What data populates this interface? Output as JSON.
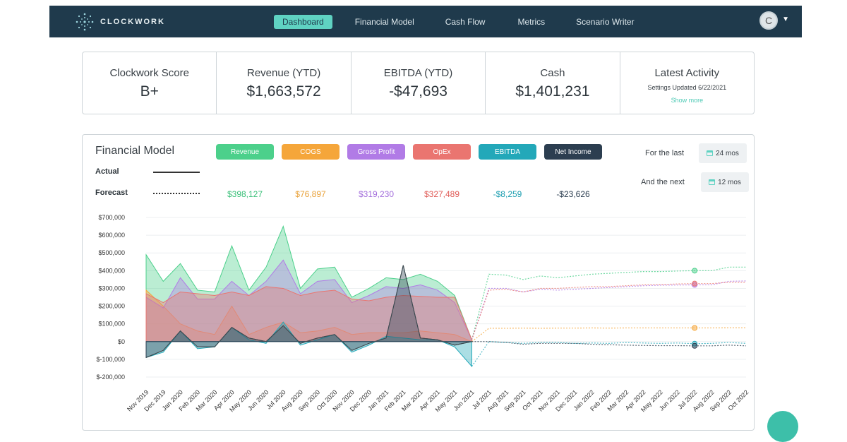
{
  "nav": {
    "logo_text": "CLOCKWORK",
    "links": [
      "Dashboard",
      "Financial Model",
      "Cash Flow",
      "Metrics",
      "Scenario Writer"
    ],
    "active": "Dashboard",
    "avatar_letter": "C"
  },
  "stats": [
    {
      "label": "Clockwork Score",
      "value": "B+"
    },
    {
      "label": "Revenue (YTD)",
      "value": "$1,663,572"
    },
    {
      "label": "EBITDA (YTD)",
      "value": "-$47,693"
    },
    {
      "label": "Cash",
      "value": "$1,401,231"
    },
    {
      "label": "Latest Activity",
      "sub": "Settings Updated 6/22/2021",
      "link": "Show more"
    }
  ],
  "model": {
    "title": "Financial Model",
    "actual_label": "Actual",
    "forecast_label": "Forecast",
    "for_last_label": "For the last",
    "for_last_value": "24 mos",
    "and_next_label": "And the next",
    "and_next_value": "12 mos",
    "metrics": [
      {
        "name": "Revenue",
        "value": "$398,127",
        "color": "#4cd08b",
        "text_color": "#3cc07a"
      },
      {
        "name": "COGS",
        "value": "$76,897",
        "color": "#f5a63a",
        "text_color": "#e9a23a"
      },
      {
        "name": "Gross Profit",
        "value": "$319,230",
        "color": "#b17be6",
        "text_color": "#a46fdc"
      },
      {
        "name": "OpEx",
        "value": "$327,489",
        "color": "#ea7570",
        "text_color": "#e05c57"
      },
      {
        "name": "EBITDA",
        "value": "-$8,259",
        "color": "#23a8b9",
        "text_color": "#1f9fb1"
      },
      {
        "name": "Net Income",
        "value": "-$23,626",
        "color": "#2c3e50",
        "text_color": "#2c3e50"
      }
    ]
  },
  "chart_data": {
    "type": "area",
    "ylim": [
      -200000,
      700000
    ],
    "yticks": [
      "$700,000",
      "$600,000",
      "$500,000",
      "$400,000",
      "$300,000",
      "$200,000",
      "$100,000",
      "$0",
      "$-100,000",
      "$-200,000"
    ],
    "categories": [
      "Nov 2019",
      "Dec 2019",
      "Jan 2020",
      "Feb 2020",
      "Mar 2020",
      "Apr 2020",
      "May 2020",
      "Jun 2020",
      "Jul 2020",
      "Aug 2020",
      "Sep 2020",
      "Oct 2020",
      "Nov 2020",
      "Dec 2020",
      "Jan 2021",
      "Feb 2021",
      "Mar 2021",
      "Apr 2021",
      "May 2021",
      "Jun 2021",
      "Jul 2021",
      "Aug 2021",
      "Sep 2021",
      "Oct 2021",
      "Nov 2021",
      "Dec 2021",
      "Jan 2022",
      "Feb 2022",
      "Mar 2022",
      "Apr 2022",
      "May 2022",
      "Jun 2022",
      "Jul 2022",
      "Aug 2022",
      "Sep 2022",
      "Oct 2022"
    ],
    "actual_count": 20,
    "series": [
      {
        "name": "Revenue",
        "color": "#4cd08b",
        "values": [
          490000,
          340000,
          440000,
          290000,
          280000,
          540000,
          290000,
          420000,
          650000,
          300000,
          410000,
          420000,
          250000,
          300000,
          360000,
          350000,
          380000,
          340000,
          260000,
          10000,
          380000,
          375000,
          350000,
          370000,
          360000,
          370000,
          380000,
          385000,
          390000,
          395000,
          395000,
          398000,
          400000,
          400000,
          420000,
          420000
        ]
      },
      {
        "name": "COGS",
        "color": "#f5a63a",
        "values": [
          290000,
          200000,
          100000,
          60000,
          40000,
          200000,
          40000,
          80000,
          110000,
          50000,
          60000,
          80000,
          40000,
          50000,
          50000,
          50000,
          60000,
          50000,
          40000,
          0,
          75000,
          75000,
          76000,
          75000,
          76000,
          76000,
          77000,
          76000,
          77000,
          77000,
          77000,
          77000,
          77000,
          77000,
          78000,
          78000
        ]
      },
      {
        "name": "Gross Profit",
        "color": "#b17be6",
        "values": [
          250000,
          190000,
          360000,
          240000,
          240000,
          340000,
          260000,
          340000,
          460000,
          270000,
          340000,
          350000,
          220000,
          260000,
          310000,
          300000,
          320000,
          290000,
          220000,
          10000,
          300000,
          300000,
          280000,
          295000,
          290000,
          295000,
          300000,
          305000,
          310000,
          315000,
          318000,
          319000,
          320000,
          320000,
          340000,
          342000
        ]
      },
      {
        "name": "OpEx",
        "color": "#ea7570",
        "values": [
          270000,
          220000,
          280000,
          270000,
          260000,
          280000,
          260000,
          310000,
          300000,
          260000,
          280000,
          290000,
          240000,
          230000,
          250000,
          260000,
          255000,
          250000,
          250000,
          10000,
          290000,
          295000,
          280000,
          300000,
          300000,
          305000,
          310000,
          310000,
          315000,
          320000,
          322000,
          325000,
          327000,
          327000,
          335000,
          335000
        ]
      },
      {
        "name": "EBITDA",
        "color": "#23a8b9",
        "values": [
          -90000,
          -60000,
          60000,
          -40000,
          -30000,
          80000,
          10000,
          -10000,
          110000,
          -20000,
          10000,
          40000,
          -60000,
          -20000,
          30000,
          20000,
          10000,
          10000,
          -30000,
          -140000,
          0,
          -5000,
          -10000,
          -5000,
          -5000,
          -10000,
          -8000,
          -10000,
          -5000,
          -8000,
          -10000,
          -8000,
          -12000,
          -10000,
          -5000,
          -10000
        ]
      },
      {
        "name": "Net Income",
        "color": "#2c3e50",
        "values": [
          -90000,
          -50000,
          60000,
          -30000,
          -30000,
          80000,
          20000,
          0,
          90000,
          -10000,
          20000,
          40000,
          -50000,
          -10000,
          20000,
          430000,
          20000,
          10000,
          -20000,
          0,
          0,
          -5000,
          -15000,
          -10000,
          -10000,
          -10000,
          -15000,
          -18000,
          -20000,
          -22000,
          -23000,
          -23000,
          -24000,
          -24000,
          -20000,
          -24000
        ]
      }
    ]
  }
}
